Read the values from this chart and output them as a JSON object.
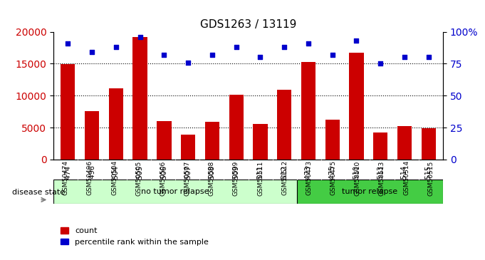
{
  "title": "GDS1263 / 13119",
  "samples": [
    "GSM50474",
    "GSM50496",
    "GSM50504",
    "GSM50505",
    "GSM50506",
    "GSM50507",
    "GSM50508",
    "GSM50509",
    "GSM50511",
    "GSM50512",
    "GSM50473",
    "GSM50475",
    "GSM50510",
    "GSM50513",
    "GSM50514",
    "GSM50515"
  ],
  "counts": [
    14900,
    7600,
    11100,
    19200,
    6000,
    3900,
    5900,
    10100,
    5600,
    10900,
    15300,
    6200,
    16700,
    4200,
    5200,
    4900
  ],
  "percentiles": [
    91,
    84,
    88,
    96,
    82,
    76,
    82,
    88,
    80,
    88,
    91,
    82,
    93,
    75,
    80,
    80
  ],
  "no_tumor_count": 10,
  "tumor_count": 6,
  "bar_color": "#cc0000",
  "dot_color": "#0000cc",
  "left_ylim": [
    0,
    20000
  ],
  "right_ylim": [
    0,
    100
  ],
  "left_yticks": [
    0,
    5000,
    10000,
    15000,
    20000
  ],
  "right_yticks": [
    0,
    25,
    50,
    75,
    100
  ],
  "right_yticklabels": [
    "0",
    "25",
    "50",
    "75",
    "100%"
  ],
  "no_tumor_color": "#ccffcc",
  "tumor_color": "#44cc44",
  "bg_color": "#d8d8d8",
  "grid_color": "#000000",
  "disease_state_label": "disease state",
  "no_tumor_label": "no tumor relapse",
  "tumor_label": "tumor relapse",
  "legend_count_label": "count",
  "legend_pct_label": "percentile rank within the sample"
}
